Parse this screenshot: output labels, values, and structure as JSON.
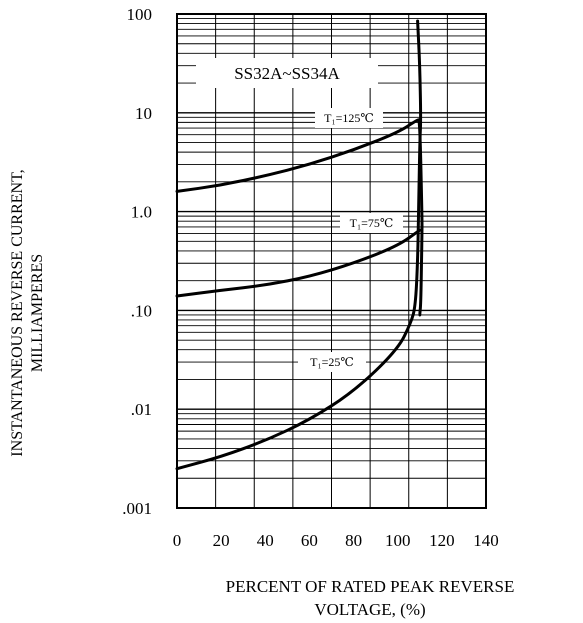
{
  "chart_data": {
    "type": "line",
    "title": "SS32A~SS34A",
    "xlabel": [
      "PERCENT OF RATED PEAK REVERSE",
      "VOLTAGE, (%)"
    ],
    "ylabel": [
      "INSTANTANEOUS REVERSE CURRENT,",
      "MILLIAMPERES"
    ],
    "x_scale": "linear",
    "y_scale": "log",
    "xlim": [
      0,
      140
    ],
    "ylim": [
      0.001,
      100
    ],
    "grid": true,
    "x_ticks": [
      "0",
      "20",
      "40",
      "60",
      "80",
      "100",
      "120",
      "140"
    ],
    "y_ticks": [
      ".001",
      ".01",
      ".10",
      "1.0",
      "10",
      "100"
    ],
    "series": [
      {
        "name": "TJ=125℃",
        "x": [
          0,
          20,
          40,
          60,
          80,
          100,
          109,
          110,
          111,
          111,
          110.5,
          110
        ],
        "y": [
          1.6,
          1.85,
          2.3,
          3.0,
          4.2,
          6.3,
          8.5,
          8.5,
          0.9,
          0.6,
          0.12,
          0.09
        ]
      },
      {
        "name": "TJ=75℃",
        "x": [
          0,
          20,
          40,
          60,
          80,
          100,
          110
        ],
        "y": [
          0.14,
          0.16,
          0.18,
          0.22,
          0.3,
          0.45,
          0.65
        ]
      },
      {
        "name": "TJ=25℃",
        "x": [
          0,
          20,
          40,
          60,
          80,
          100,
          106,
          108,
          109,
          109.5,
          110,
          110.5,
          110,
          109
        ],
        "y": [
          0.0025,
          0.0033,
          0.0048,
          0.0078,
          0.015,
          0.04,
          0.075,
          0.11,
          0.3,
          1.0,
          5.0,
          8.5,
          30,
          85
        ]
      }
    ],
    "series_labels": [
      "T₁=125℃",
      "T₁=75℃",
      "T₁=25℃"
    ]
  }
}
